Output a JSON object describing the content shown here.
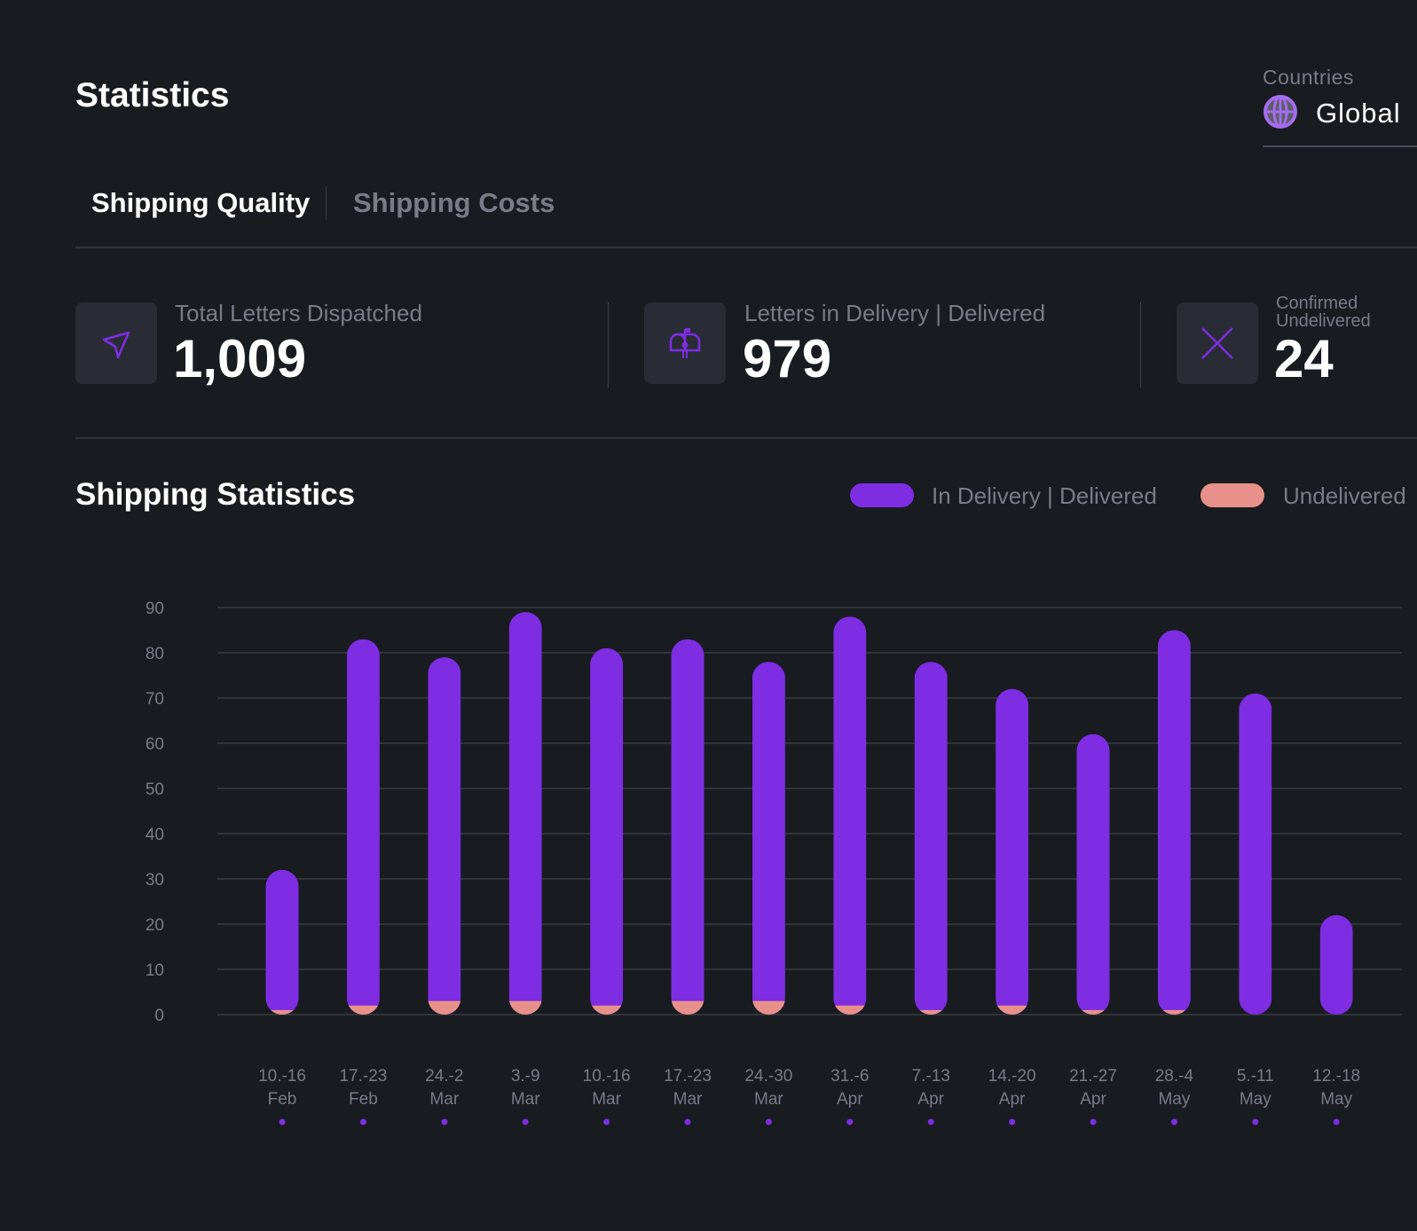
{
  "header": {
    "title": "Statistics"
  },
  "country_filter": {
    "label": "Countries",
    "value": "Global",
    "icon": "globe-icon"
  },
  "tabs": [
    {
      "label": "Shipping Quality",
      "active": true
    },
    {
      "label": "Shipping Costs",
      "active": false
    }
  ],
  "stats": [
    {
      "label": "Total Letters Dispatched",
      "value": "1,009",
      "icon": "paper-plane-icon"
    },
    {
      "label": "Letters in Delivery | Delivered",
      "value": "979",
      "icon": "mailbox-icon"
    },
    {
      "label": "Confirmed Undelivered",
      "value": "24",
      "icon": "x-icon"
    }
  ],
  "chart_section": {
    "title": "Shipping Statistics"
  },
  "colors": {
    "background": "#181b20",
    "delivered": "#7e2de3",
    "undelivered": "#e8918a",
    "muted_text": "#7a7b86",
    "grid": "#30333a"
  },
  "chart_data": {
    "type": "bar",
    "stacked": true,
    "title": "Shipping Statistics",
    "legend_position": "top-right",
    "grid": true,
    "ylim": [
      0,
      90
    ],
    "yticks": [
      "0",
      "10",
      "20",
      "30",
      "40",
      "50",
      "60",
      "70",
      "80",
      "90"
    ],
    "categories": [
      [
        "10.-16",
        "Feb"
      ],
      [
        "17.-23",
        "Feb"
      ],
      [
        "24.-2",
        "Mar"
      ],
      [
        "3.-9",
        "Mar"
      ],
      [
        "10.-16",
        "Mar"
      ],
      [
        "17.-23",
        "Mar"
      ],
      [
        "24.-30",
        "Mar"
      ],
      [
        "31.-6",
        "Apr"
      ],
      [
        "7.-13",
        "Apr"
      ],
      [
        "14.-20",
        "Apr"
      ],
      [
        "21.-27",
        "Apr"
      ],
      [
        "28.-4",
        "May"
      ],
      [
        "5.-11",
        "May"
      ],
      [
        "12.-18",
        "May"
      ]
    ],
    "series": [
      {
        "name": "In Delivery | Delivered",
        "color": "#7e2de3",
        "values": [
          31,
          81,
          76,
          86,
          79,
          80,
          75,
          86,
          77,
          70,
          61,
          84,
          71,
          22
        ]
      },
      {
        "name": "Undelivered",
        "color": "#e8918a",
        "values": [
          1,
          2,
          3,
          3,
          2,
          3,
          3,
          2,
          1,
          2,
          1,
          1,
          0,
          0
        ]
      }
    ]
  }
}
